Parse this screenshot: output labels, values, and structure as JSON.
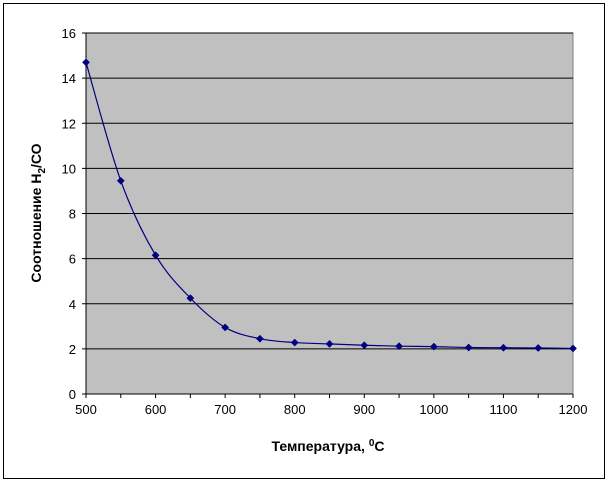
{
  "chart_data": {
    "type": "line",
    "title": "",
    "xlabel": {
      "main": "Температура, ",
      "sup": "0",
      "after": "С"
    },
    "ylabel": {
      "main": "Соотношение Н",
      "sub": "2",
      "after": "/СО"
    },
    "x": [
      500,
      550,
      600,
      650,
      700,
      750,
      800,
      850,
      900,
      950,
      1000,
      1050,
      1100,
      1150,
      1200
    ],
    "series": [
      {
        "values": [
          14.7,
          9.45,
          6.15,
          4.25,
          2.95,
          2.45,
          2.28,
          2.22,
          2.16,
          2.12,
          2.1,
          2.06,
          2.05,
          2.04,
          2.02
        ],
        "color": "#000080",
        "marker": "diamond",
        "smooth": true
      }
    ],
    "xlim": [
      500,
      1200
    ],
    "ylim": [
      0,
      16
    ],
    "xticks": [
      500,
      600,
      700,
      800,
      900,
      1000,
      1100,
      1200
    ],
    "yticks": [
      0,
      2,
      4,
      6,
      8,
      10,
      12,
      14,
      16
    ],
    "grid": "horizontal",
    "plot_background": "#c0c0c0",
    "legend": "none"
  }
}
